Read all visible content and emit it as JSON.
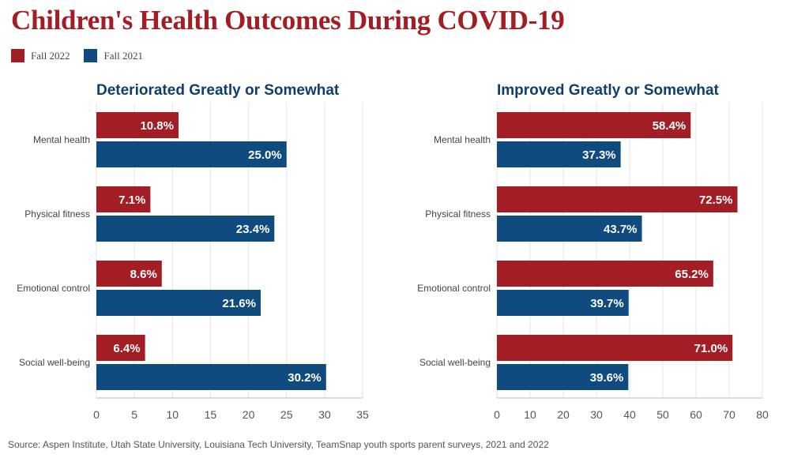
{
  "title": "Children's Health Outcomes During COVID-19",
  "source": "Source: Aspen Institute, Utah State University, Louisiana Tech University, TeamSnap youth sports parent surveys, 2021 and 2022",
  "colors": {
    "fall_2022": "#a31d24",
    "fall_2021": "#0f4b7e",
    "panel_title": "#103e6c"
  },
  "legend": [
    {
      "label": "Fall 2022",
      "color": "#a31d24"
    },
    {
      "label": "Fall 2021",
      "color": "#0f4b7e"
    }
  ],
  "chart_data": [
    {
      "type": "bar",
      "orientation": "horizontal",
      "title": "Deteriorated Greatly or Somewhat",
      "categories": [
        "Mental health",
        "Physical fitness",
        "Emotional control",
        "Social well-being"
      ],
      "series": [
        {
          "name": "Fall 2022",
          "values": [
            10.8,
            7.1,
            8.6,
            6.4
          ],
          "labels": [
            "10.8%",
            "7.1%",
            "8.6%",
            "6.4%"
          ]
        },
        {
          "name": "Fall 2021",
          "values": [
            25.0,
            23.4,
            21.6,
            30.2
          ],
          "labels": [
            "25.0%",
            "23.4%",
            "21.6%",
            "30.2%"
          ]
        }
      ],
      "xlim": [
        0,
        35
      ],
      "xticks": [
        0,
        5,
        10,
        15,
        20,
        25,
        30,
        35
      ],
      "xtick_labels": [
        "0",
        "5",
        "10",
        "15",
        "20",
        "25",
        "30",
        "35"
      ],
      "grid": true
    },
    {
      "type": "bar",
      "orientation": "horizontal",
      "title": "Improved Greatly or Somewhat",
      "categories": [
        "Mental health",
        "Physical fitness",
        "Emotional control",
        "Social well-being"
      ],
      "series": [
        {
          "name": "Fall 2022",
          "values": [
            58.4,
            72.5,
            65.2,
            71.0
          ],
          "labels": [
            "58.4%",
            "72.5%",
            "65.2%",
            "71.0%"
          ]
        },
        {
          "name": "Fall 2021",
          "values": [
            37.3,
            43.7,
            39.7,
            39.6
          ],
          "labels": [
            "37.3%",
            "43.7%",
            "39.7%",
            "39.6%"
          ]
        }
      ],
      "xlim": [
        0,
        80
      ],
      "xticks": [
        0,
        10,
        20,
        30,
        40,
        50,
        60,
        70,
        80
      ],
      "xtick_labels": [
        "0",
        "10",
        "20",
        "30",
        "40",
        "50",
        "60",
        "70",
        "80"
      ],
      "grid": true
    }
  ]
}
